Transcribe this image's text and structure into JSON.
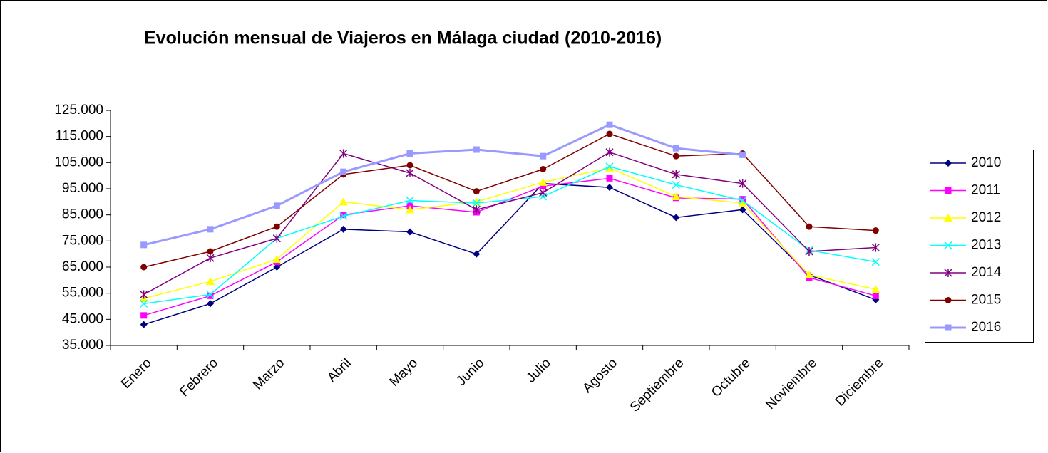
{
  "chart_data": {
    "type": "line",
    "title": "Evolución mensual de Viajeros en Málaga ciudad (2010-2016)",
    "categories": [
      "Enero",
      "Febrero",
      "Marzo",
      "Abril",
      "Mayo",
      "Junio",
      "Julio",
      "Agosto",
      "Septiembre",
      "Octubre",
      "Noviembre",
      "Diciembre"
    ],
    "series": [
      {
        "name": "2010",
        "color": "#000080",
        "marker": "diamond",
        "values": [
          43000,
          51000,
          65000,
          79500,
          78500,
          70000,
          97000,
          95500,
          84000,
          87000,
          62000,
          52500
        ]
      },
      {
        "name": "2011",
        "color": "#ff00ff",
        "marker": "square",
        "values": [
          46500,
          54000,
          67000,
          85000,
          88500,
          86000,
          96000,
          99000,
          91500,
          91000,
          61000,
          54000
        ]
      },
      {
        "name": "2012",
        "color": "#ffff00",
        "marker": "triangle",
        "values": [
          53000,
          59500,
          68000,
          90000,
          87000,
          90000,
          97500,
          103000,
          92000,
          89500,
          62000,
          56500
        ]
      },
      {
        "name": "2013",
        "color": "#00ffff",
        "marker": "x",
        "values": [
          51000,
          54500,
          76000,
          84500,
          90500,
          89500,
          92000,
          103500,
          96500,
          90500,
          71500,
          67000
        ]
      },
      {
        "name": "2014",
        "color": "#800080",
        "marker": "star",
        "values": [
          54500,
          68500,
          76000,
          108500,
          101000,
          87000,
          93500,
          109000,
          100500,
          97000,
          71000,
          72500
        ]
      },
      {
        "name": "2015",
        "color": "#800000",
        "marker": "circle",
        "values": [
          65000,
          71000,
          80500,
          100500,
          104000,
          94000,
          102500,
          116000,
          107500,
          108500,
          80500,
          79000
        ]
      },
      {
        "name": "2016",
        "color": "#9999ff",
        "marker": "square",
        "values": [
          73500,
          79500,
          88500,
          101500,
          108500,
          110000,
          107500,
          119500,
          110500,
          108000,
          null,
          null
        ]
      }
    ],
    "ylim": [
      35000,
      125000
    ],
    "yticks": [
      {
        "value": 35000,
        "label": "35.000"
      },
      {
        "value": 45000,
        "label": "45.000"
      },
      {
        "value": 55000,
        "label": "55.000"
      },
      {
        "value": 65000,
        "label": "65.000"
      },
      {
        "value": 75000,
        "label": "75.000"
      },
      {
        "value": 85000,
        "label": "85.000"
      },
      {
        "value": 95000,
        "label": "95.000"
      },
      {
        "value": 105000,
        "label": "105.000"
      },
      {
        "value": 115000,
        "label": "115.000"
      },
      {
        "value": 125000,
        "label": "125.000"
      }
    ],
    "legend": "right"
  }
}
